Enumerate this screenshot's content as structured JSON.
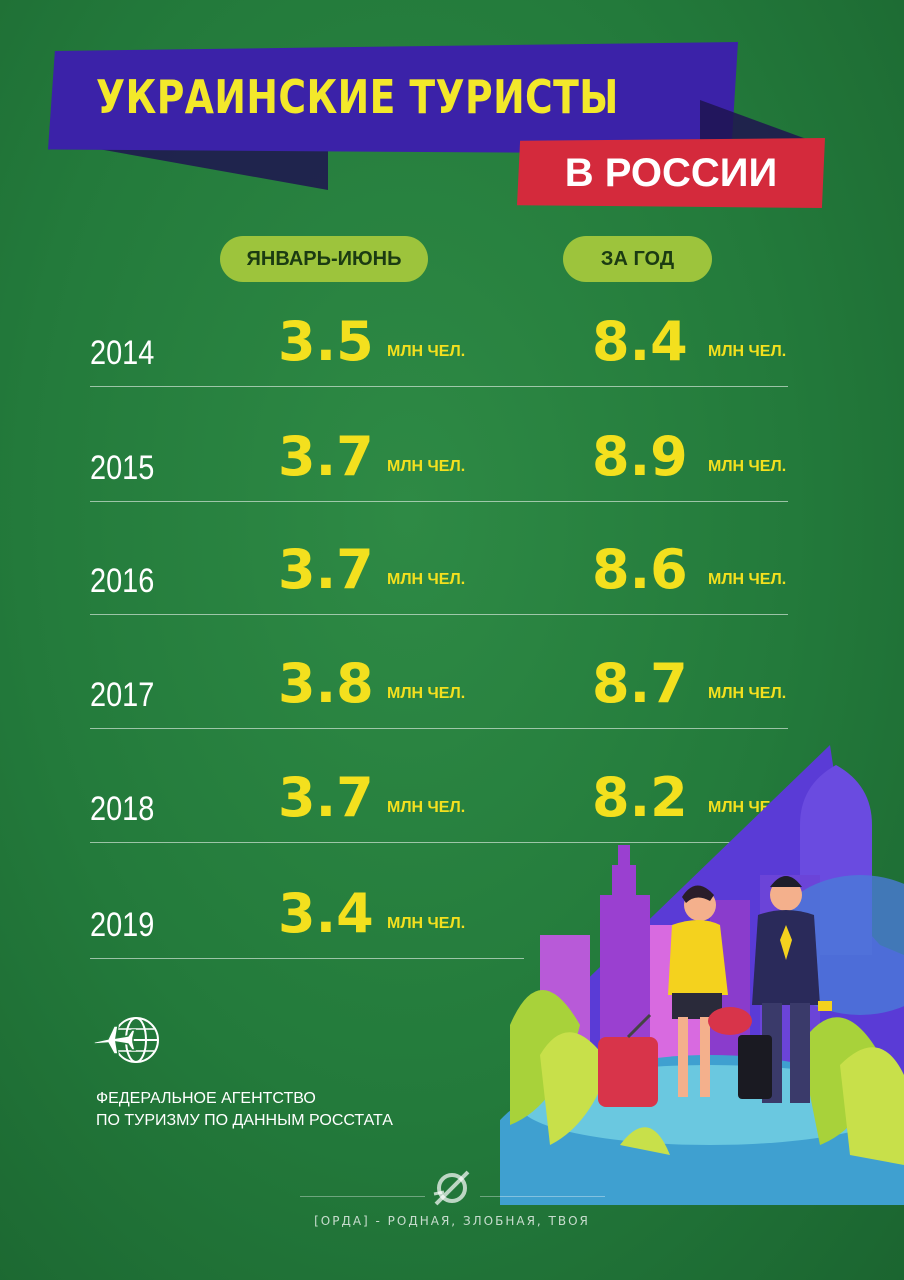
{
  "header": {
    "title": "УКРАИНСКИЕ ТУРИСТЫ",
    "subtitle": "В РОССИИ"
  },
  "columns": {
    "h1": "ЯНВАРЬ-ИЮНЬ",
    "h2": "ЗА ГОД"
  },
  "chart_data": {
    "type": "table",
    "title": "УКРАИНСКИЕ ТУРИСТЫ В РОССИИ",
    "columns": [
      "ЯНВАРЬ-ИЮНЬ",
      "ЗА ГОД"
    ],
    "unit": "МЛН ЧЕЛ.",
    "rows": [
      {
        "year": "2014",
        "jan_jun": "3.5",
        "year_total": "8.4"
      },
      {
        "year": "2015",
        "jan_jun": "3.7",
        "year_total": "8.9"
      },
      {
        "year": "2016",
        "jan_jun": "3.7",
        "year_total": "8.6"
      },
      {
        "year": "2017",
        "jan_jun": "3.8",
        "year_total": "8.7"
      },
      {
        "year": "2018",
        "jan_jun": "3.7",
        "year_total": "8.2"
      },
      {
        "year": "2019",
        "jan_jun": "3.4",
        "year_total": null
      }
    ]
  },
  "source": {
    "line1": "ФЕДЕРАЛЬНОЕ АГЕНТСТВО",
    "line2": "ПО ТУРИЗМУ ПО ДАННЫМ РОССТАТА",
    "icon": "plane-globe-icon"
  },
  "footer": {
    "text": "[ОРДА] - РОДНАЯ, ЗЛОБНАЯ, ТВОЯ",
    "logo": "orda-logo-icon"
  },
  "colors": {
    "background": "#237a3b",
    "title_band": "#3b22a8",
    "subtitle_band": "#d42a3c",
    "title_text": "#f3e82a",
    "value_text": "#f3e01e",
    "pill": "#9dc43c"
  }
}
